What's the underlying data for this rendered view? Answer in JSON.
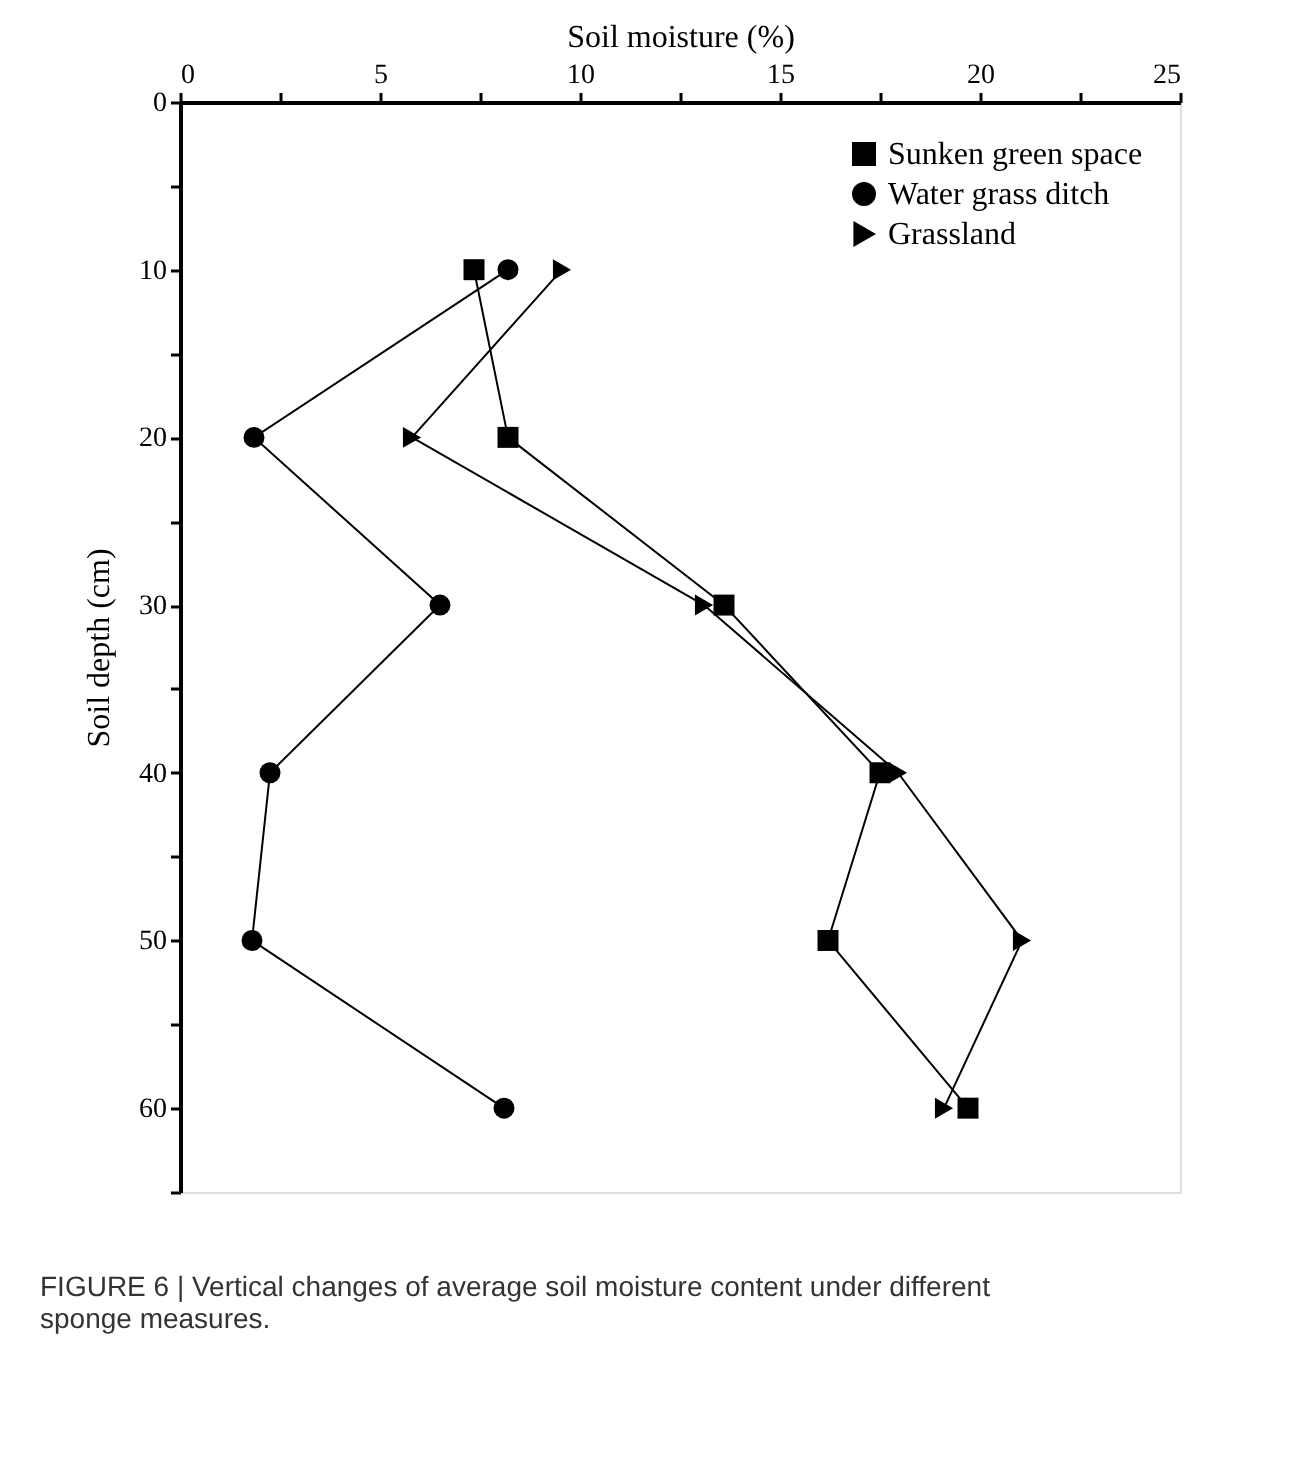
{
  "chart_data": {
    "type": "line",
    "xlabel": "Soil moisture (%)",
    "ylabel": "Soil depth (cm)",
    "annotations": [
      "FIGURE 6 | Vertical changes of average soil moisture content under different sponge measures."
    ],
    "xlim": [
      0,
      25
    ],
    "xticks": [
      0,
      {
        "value": 2.5,
        "label": null
      },
      5,
      {
        "value": 7.5,
        "label": null
      },
      10,
      {
        "value": 12.5,
        "label": null
      },
      15,
      {
        "value": 17.5,
        "label": null
      },
      20,
      {
        "value": 22.5,
        "label": null
      },
      25
    ],
    "ylim": [
      65,
      0
    ],
    "yticks": [
      0,
      {
        "value": 5,
        "label": null
      },
      10,
      {
        "value": 15,
        "label": null
      },
      20,
      {
        "value": 25,
        "label": null
      },
      30,
      {
        "value": 35,
        "label": null
      },
      40,
      {
        "value": 45,
        "label": null
      },
      50,
      {
        "value": 55,
        "label": null
      },
      60,
      {
        "value": 65,
        "label": null
      }
    ],
    "grid": false,
    "legend": "top right",
    "line_style": "solid",
    "series": [
      {
        "name": "Sunken green space",
        "color": "#000000",
        "marker": "square",
        "x": [
          7.35,
          8.2,
          13.6,
          17.5,
          16.2,
          19.7
        ],
        "values": [
          10,
          20,
          30,
          40,
          50,
          60
        ]
      },
      {
        "name": "Water grass ditch",
        "color": "#000000",
        "marker": "circle",
        "x": [
          8.2,
          1.85,
          6.5,
          2.25,
          1.8,
          8.1
        ],
        "values": [
          10,
          20,
          30,
          40,
          50,
          60
        ]
      },
      {
        "name": "Grassland",
        "color": "#000000",
        "marker": "triangle",
        "x": [
          9.55,
          5.8,
          13.1,
          17.95,
          21.05,
          19.1
        ],
        "values": [
          10,
          20,
          30,
          40,
          50,
          60
        ]
      }
    ]
  }
}
